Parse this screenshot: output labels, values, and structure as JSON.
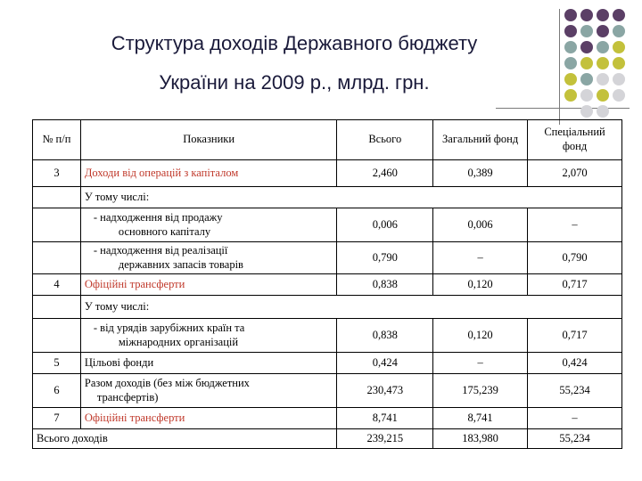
{
  "title": {
    "line1": "Структура доходів Державного бюджету",
    "line2": "України на 2009 р., млрд. грн."
  },
  "colors": {
    "title_text": "#1a1a3a",
    "dot_purple": "#5b3f66",
    "dot_teal": "#8aa6a4",
    "dot_olive": "#c3c13b",
    "dot_gray": "#d4d4d8",
    "red_text": "#c0392b"
  },
  "table": {
    "headers": {
      "num": "№ п/п",
      "indicator": "Показники",
      "total": "Всього",
      "general": "Загальний фонд",
      "special": "Спеціальний фонд"
    },
    "rows": [
      {
        "num": "3",
        "label": "Доходи від операцій з капіталом",
        "total": "2,460",
        "general": "0,389",
        "special": "2,070"
      },
      {
        "label": "У тому числі:"
      },
      {
        "label_a": "- надходження від продажу",
        "label_b": "основного капіталу",
        "total": "0,006",
        "general": "0,006",
        "special": "–"
      },
      {
        "label_a": "- надходження від реалізації",
        "label_b": "державних запасів товарів",
        "total": "0,790",
        "general": "–",
        "special": "0,790"
      },
      {
        "num": "4",
        "label": "Офіційні трансферти",
        "total": "0,838",
        "general": "0,120",
        "special": "0,717"
      },
      {
        "label": "У тому числі:"
      },
      {
        "label_a": "- від урядів зарубіжних країн та",
        "label_b": "міжнародних організацій",
        "total": "0,838",
        "general": "0,120",
        "special": "0,717"
      },
      {
        "num": "5",
        "label": "Цільові фонди",
        "total": "0,424",
        "general": "–",
        "special": "0,424"
      },
      {
        "num": "6",
        "label_a": "Разом доходів (без між бюджетних",
        "label_b": "трансфертів)",
        "total": "230,473",
        "general": "175,239",
        "special": "55,234"
      },
      {
        "num": "7",
        "label": "Офіційні трансферти",
        "total": "8,741",
        "general": "8,741",
        "special": "–"
      },
      {
        "label": "Всього доходів",
        "total": "239,215",
        "general": "183,980",
        "special": "55,234"
      }
    ]
  }
}
